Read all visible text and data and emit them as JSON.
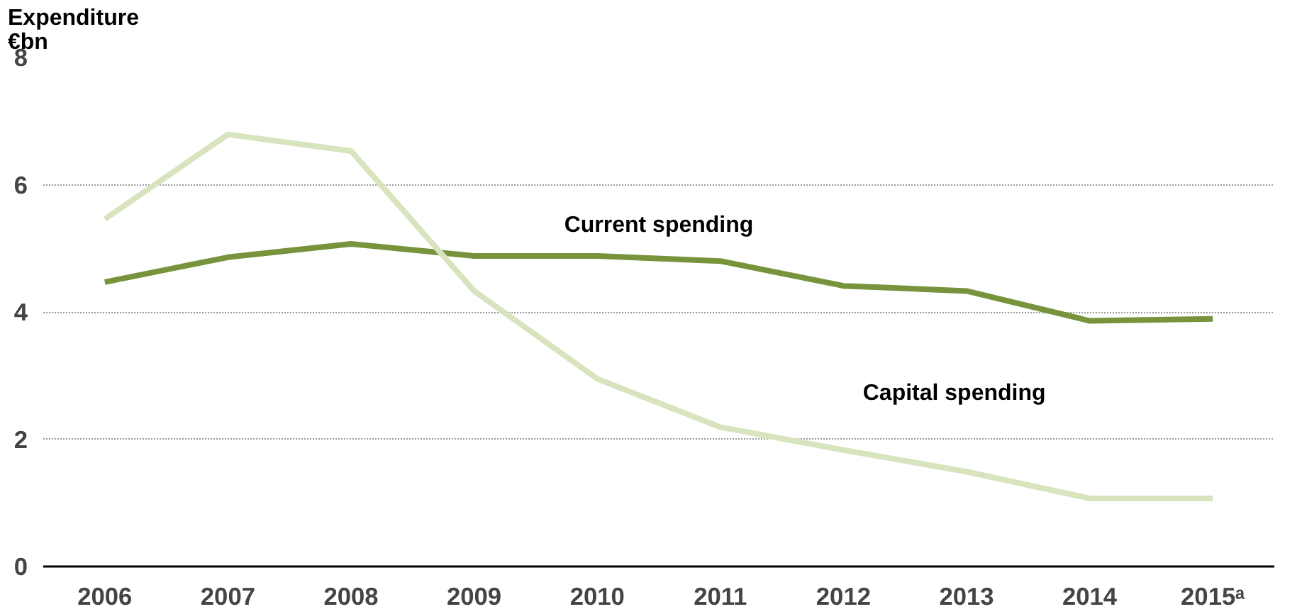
{
  "chart_data": {
    "type": "line",
    "ylabel": "Expenditure\n€bn",
    "categories": [
      "2006",
      "2007",
      "2008",
      "2009",
      "2010",
      "2011",
      "2012",
      "2013",
      "2014",
      "2015ᵃ"
    ],
    "series": [
      {
        "name": "Current spending",
        "color": "#77933c",
        "values": [
          4.47,
          4.86,
          5.07,
          4.88,
          4.88,
          4.8,
          4.41,
          4.33,
          3.86,
          3.89
        ]
      },
      {
        "name": "Capital spending",
        "color": "#d7e4bd",
        "values": [
          5.46,
          6.79,
          6.53,
          4.33,
          2.95,
          2.19,
          1.83,
          1.49,
          1.07,
          1.07
        ]
      }
    ],
    "ylim": [
      0,
      8
    ],
    "yticks": [
      0,
      2,
      4,
      6,
      8
    ],
    "grid": "y",
    "legend": false,
    "marker": "none",
    "line_style": "solid"
  }
}
